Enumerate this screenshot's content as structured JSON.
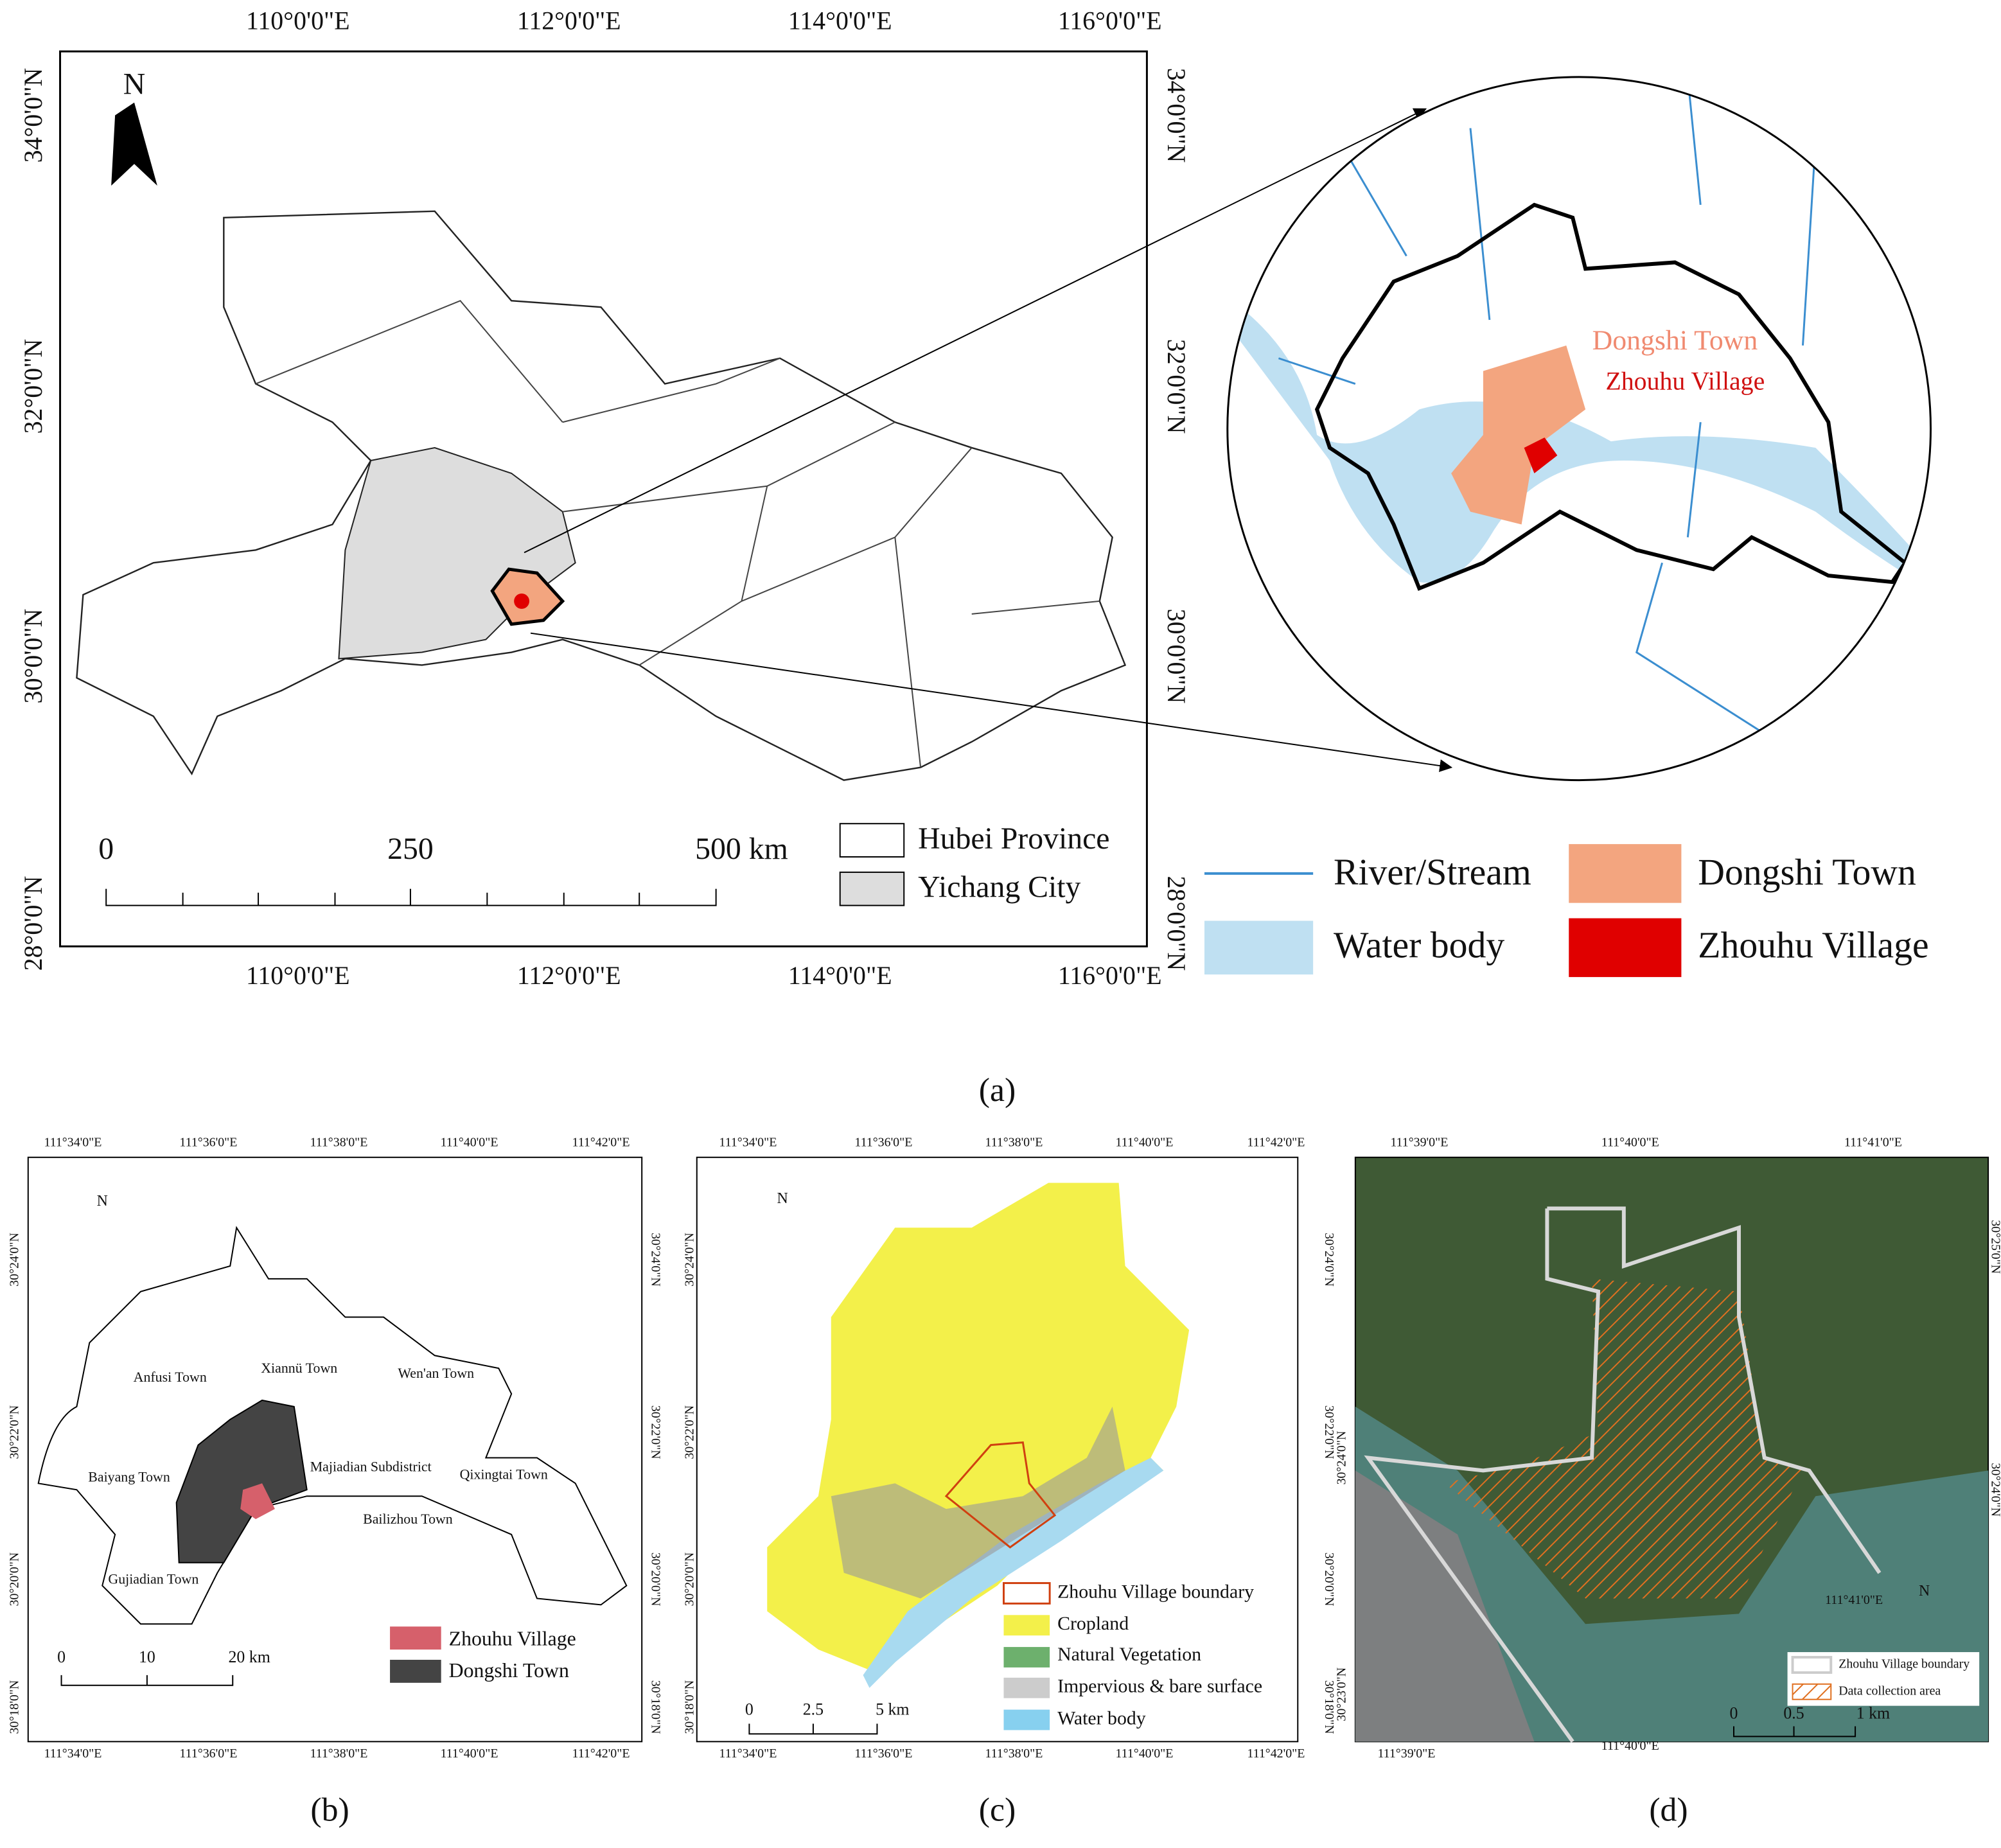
{
  "panel_a": {
    "north": "N",
    "lon_ticks": [
      "110°0'0\"E",
      "112°0'0\"E",
      "114°0'0\"E",
      "116°0'0\"E"
    ],
    "lat_ticks": [
      "34°0'0\"N",
      "32°0'0\"N",
      "30°0'0\"N",
      "28°0'0\"N"
    ],
    "scale": [
      "0",
      "250",
      "500 km"
    ],
    "legend": [
      "Hubei Province",
      "Yichang City"
    ],
    "inset_labels": [
      "Dongshi Town",
      "Zhouhu Village"
    ],
    "inset_legend": [
      "River/Stream",
      "Water body",
      "Dongshi Town",
      "Zhouhu Village"
    ],
    "caption": "(a)"
  },
  "panel_b": {
    "north": "N",
    "lon_ticks": [
      "111°34'0\"E",
      "111°36'0\"E",
      "111°38'0\"E",
      "111°40'0\"E",
      "111°42'0\"E"
    ],
    "lat_ticks": [
      "30°24'0\"N",
      "30°22'0\"N",
      "30°20'0\"N",
      "30°18'0\"N"
    ],
    "towns": [
      "Anfusi Town",
      "Xiannü Town",
      "Wen'an Town",
      "Baiyang Town",
      "Majiadian Subdistrict",
      "Qixingtai Town",
      "Bailizhou Town",
      "Gujiadian Town"
    ],
    "legend": [
      "Zhouhu Village",
      "Dongshi Town"
    ],
    "scale": [
      "0",
      "10",
      "20 km"
    ],
    "caption": "(b)"
  },
  "panel_c": {
    "north": "N",
    "lon_ticks": [
      "111°34'0\"E",
      "111°36'0\"E",
      "111°38'0\"E",
      "111°40'0\"E",
      "111°42'0\"E"
    ],
    "lat_ticks": [
      "30°24'0\"N",
      "30°22'0\"N",
      "30°20'0\"N",
      "30°18'0\"N"
    ],
    "legend": [
      "Zhouhu Village boundary",
      "Cropland",
      "Natural Vegetation",
      "Impervious & bare surface",
      "Water body"
    ],
    "scale": [
      "0",
      "2.5",
      "5 km"
    ],
    "caption": "(c)"
  },
  "panel_d": {
    "north": "N",
    "lon_ticks_top": [
      "111°39'0\"E",
      "111°40'0\"E",
      "111°41'0\"E"
    ],
    "lon_ticks_bottom": [
      "111°39'0\"E",
      "111°40'0\"E",
      "111°41'0\"E"
    ],
    "lat_ticks_left": [
      "30°24'0\"N",
      "30°23'0\"N"
    ],
    "lat_ticks_right": [
      "30°25'0\"N",
      "30°24'0\"N"
    ],
    "legend": [
      "Zhouhu Village boundary",
      "Data collection area"
    ],
    "scale": [
      "0",
      "0.5",
      "1 km"
    ],
    "caption": "(d)"
  }
}
